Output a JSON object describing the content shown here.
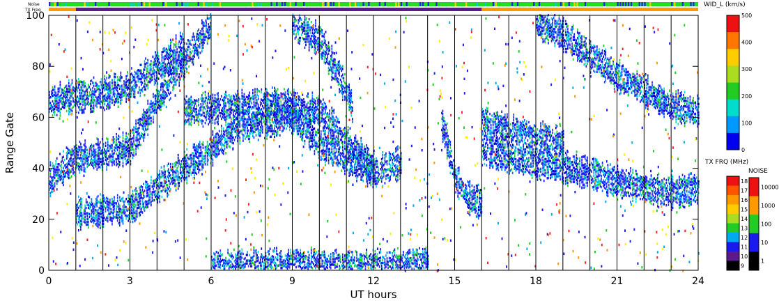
{
  "chart_data": {
    "type": "heatmap",
    "xlabel": "UT hours",
    "ylabel": "Range Gate",
    "xlim": [
      0,
      24
    ],
    "ylim": [
      0,
      100
    ],
    "x_ticks": [
      "0",
      "3",
      "6",
      "9",
      "12",
      "15",
      "18",
      "21",
      "24"
    ],
    "y_ticks": [
      "0",
      "20",
      "40",
      "60",
      "80",
      "100"
    ],
    "grid": "vertical lines every hour",
    "top_strips": [
      {
        "label": "Noise",
        "description_color": "green/yellow with blue segments"
      },
      {
        "label": "TX Freq",
        "segments": [
          {
            "from": 0,
            "to": 1,
            "color": "#ff9900"
          },
          {
            "from": 1,
            "to": 16,
            "color": "#5a1a8c"
          },
          {
            "from": 16,
            "to": 24,
            "color": "#ff9900"
          }
        ]
      }
    ],
    "colorbars": [
      {
        "label": "WID_L (km/s)",
        "ticks": [
          "500",
          "400",
          "300",
          "200",
          "100",
          "0"
        ],
        "range": [
          0,
          500
        ]
      },
      {
        "label": "TX FRQ (MHz)",
        "ticks": [
          "18",
          "17",
          "16",
          "15",
          "14",
          "13",
          "12",
          "11",
          "10",
          "9"
        ],
        "range": [
          9,
          18
        ]
      },
      {
        "label": "NOISE",
        "ticks": [
          "10000",
          "1000",
          "100",
          "10",
          "1"
        ]
      }
    ],
    "echo_bands": [
      {
        "name": "band-a",
        "points": [
          [
            1,
            22
          ],
          [
            3,
            24
          ],
          [
            5,
            40
          ],
          [
            6,
            47
          ],
          [
            7,
            56
          ],
          [
            9,
            60
          ],
          [
            10,
            49
          ],
          [
            11,
            43
          ],
          [
            12,
            38
          ],
          [
            13,
            42
          ]
        ]
      },
      {
        "name": "band-b",
        "points": [
          [
            0,
            35
          ],
          [
            1,
            44
          ],
          [
            2,
            45
          ],
          [
            3,
            48
          ],
          [
            4,
            66
          ],
          [
            5,
            82
          ],
          [
            6,
            97
          ]
        ]
      },
      {
        "name": "band-c",
        "points": [
          [
            0,
            66
          ],
          [
            1,
            68
          ],
          [
            2,
            69
          ],
          [
            3,
            72
          ],
          [
            4,
            79
          ],
          [
            5,
            88
          ]
        ]
      },
      {
        "name": "band-d",
        "points": [
          [
            5,
            62
          ],
          [
            6,
            63
          ],
          [
            8,
            65
          ],
          [
            9,
            64
          ],
          [
            10,
            62
          ],
          [
            11,
            50
          ],
          [
            12,
            40
          ]
        ]
      },
      {
        "name": "band-e",
        "points": [
          [
            9,
            96
          ],
          [
            10,
            90
          ],
          [
            11,
            70
          ],
          [
            11.2,
            64
          ]
        ]
      },
      {
        "name": "band-f",
        "points": [
          [
            14.5,
            58
          ],
          [
            15,
            36
          ],
          [
            15.5,
            28
          ],
          [
            16,
            26
          ]
        ]
      },
      {
        "name": "band-g",
        "points": [
          [
            16,
            47
          ],
          [
            17,
            44
          ],
          [
            18,
            42
          ],
          [
            19,
            40
          ],
          [
            20,
            38
          ],
          [
            21,
            34
          ],
          [
            22,
            32
          ],
          [
            23,
            30
          ],
          [
            24,
            32
          ]
        ]
      },
      {
        "name": "band-h",
        "points": [
          [
            16,
            58
          ],
          [
            17,
            55
          ],
          [
            18,
            52
          ],
          [
            19,
            50
          ]
        ]
      },
      {
        "name": "band-i",
        "points": [
          [
            18,
            97
          ],
          [
            19,
            92
          ],
          [
            20,
            84
          ],
          [
            21,
            76
          ],
          [
            22,
            70
          ],
          [
            23,
            64
          ],
          [
            24,
            62
          ]
        ]
      },
      {
        "name": "band-j",
        "points": [
          [
            6,
            1
          ],
          [
            9,
            2
          ],
          [
            12,
            1
          ],
          [
            14,
            2
          ]
        ]
      }
    ]
  }
}
